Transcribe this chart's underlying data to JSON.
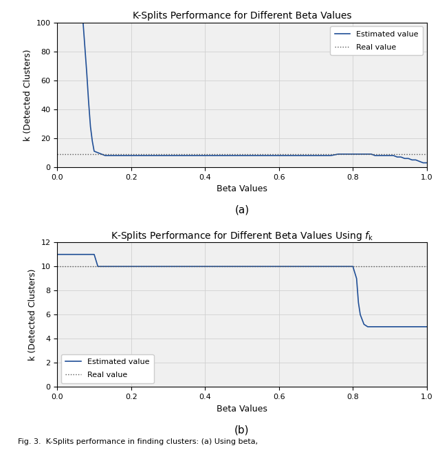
{
  "plot_a": {
    "title": "K-Splits Performance for Different Beta Values",
    "xlabel": "Beta Values",
    "ylabel": "k (Detected Clusters)",
    "real_value": 9.0,
    "xlim": [
      0.0,
      1.0
    ],
    "ylim": [
      0,
      100
    ],
    "yticks": [
      0,
      20,
      40,
      60,
      80,
      100
    ],
    "xticks": [
      0.0,
      0.2,
      0.4,
      0.6,
      0.8,
      1.0
    ],
    "line_color": "#1f4e96",
    "real_color": "#555555",
    "caption": "(a)",
    "betas": [
      0.0,
      0.01,
      0.02,
      0.03,
      0.04,
      0.05,
      0.06,
      0.07,
      0.08,
      0.085,
      0.09,
      0.095,
      0.1,
      0.11,
      0.12,
      0.13,
      0.15,
      0.2,
      0.3,
      0.4,
      0.5,
      0.6,
      0.7,
      0.72,
      0.74,
      0.76,
      0.78,
      0.8,
      0.81,
      0.82,
      0.83,
      0.84,
      0.85,
      0.86,
      0.87,
      0.88,
      0.89,
      0.9,
      0.91,
      0.92,
      0.93,
      0.94,
      0.95,
      0.96,
      0.97,
      0.98,
      0.99,
      1.0
    ],
    "k_vals": [
      101,
      101,
      101,
      101,
      101,
      101,
      101,
      100,
      65,
      45,
      28,
      18,
      11,
      10,
      9,
      8,
      8,
      8,
      8,
      8,
      8,
      8,
      8,
      8,
      8,
      9,
      9,
      9,
      9,
      9,
      9,
      9,
      9,
      8,
      8,
      8,
      8,
      8,
      8,
      7,
      7,
      6,
      6,
      5,
      5,
      4,
      3,
      3
    ]
  },
  "plot_b": {
    "title": "K-Splits Performance for Different Beta Values Using ",
    "xlabel": "Beta Values",
    "ylabel": "k (Detected Clusters)",
    "real_value": 10,
    "xlim": [
      0.0,
      1.0
    ],
    "ylim": [
      0,
      12
    ],
    "yticks": [
      0,
      2,
      4,
      6,
      8,
      10,
      12
    ],
    "xticks": [
      0.0,
      0.2,
      0.4,
      0.6,
      0.8,
      1.0
    ],
    "line_color": "#1f4e96",
    "real_color": "#555555",
    "caption": "(b)",
    "betas": [
      0.0,
      0.01,
      0.05,
      0.08,
      0.09,
      0.095,
      0.1,
      0.105,
      0.11,
      0.12,
      0.15,
      0.2,
      0.3,
      0.4,
      0.5,
      0.6,
      0.7,
      0.8,
      0.81,
      0.815,
      0.82,
      0.83,
      0.84,
      0.85,
      0.9,
      0.95,
      0.98,
      1.0
    ],
    "k_vals": [
      11,
      11,
      11,
      11,
      11,
      11,
      11,
      10.5,
      10,
      10,
      10,
      10,
      10,
      10,
      10,
      10,
      10,
      10,
      9,
      7,
      6,
      5.2,
      5,
      5,
      5,
      5,
      5,
      5
    ]
  },
  "legend_estimated": "Estimated value",
  "legend_real": "Real value",
  "fig_caption": "Fig. 3.  K-Splits performance in finding clusters: (a) Using beta,",
  "background_color": "#ffffff",
  "axes_facecolor": "#f0f0f0"
}
